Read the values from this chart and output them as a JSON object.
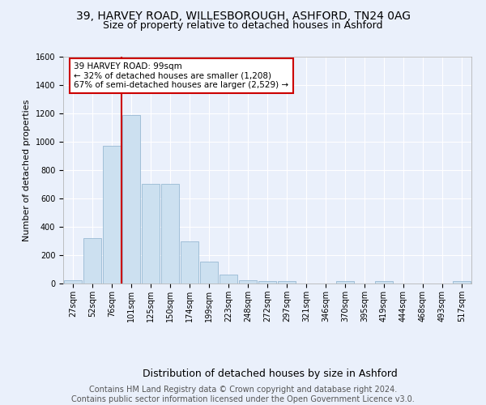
{
  "title1": "39, HARVEY ROAD, WILLESBOROUGH, ASHFORD, TN24 0AG",
  "title2": "Size of property relative to detached houses in Ashford",
  "xlabel": "Distribution of detached houses by size in Ashford",
  "ylabel": "Number of detached properties",
  "categories": [
    "27sqm",
    "52sqm",
    "76sqm",
    "101sqm",
    "125sqm",
    "150sqm",
    "174sqm",
    "199sqm",
    "223sqm",
    "248sqm",
    "272sqm",
    "297sqm",
    "321sqm",
    "346sqm",
    "370sqm",
    "395sqm",
    "419sqm",
    "444sqm",
    "468sqm",
    "493sqm",
    "517sqm"
  ],
  "values": [
    25,
    320,
    970,
    1190,
    700,
    700,
    300,
    155,
    65,
    25,
    15,
    15,
    0,
    0,
    15,
    0,
    15,
    0,
    0,
    0,
    15
  ],
  "bar_color": "#cce0f0",
  "bar_edge_color": "#8ab0cc",
  "vline_color": "#cc0000",
  "annotation_text": "39 HARVEY ROAD: 99sqm\n← 32% of detached houses are smaller (1,208)\n67% of semi-detached houses are larger (2,529) →",
  "annotation_box_color": "#ffffff",
  "annotation_box_edge": "#cc0000",
  "ylim": [
    0,
    1600
  ],
  "yticks": [
    0,
    200,
    400,
    600,
    800,
    1000,
    1200,
    1400,
    1600
  ],
  "bg_color": "#eaf0fb",
  "plot_bg_color": "#eaf0fb",
  "grid_color": "#ffffff",
  "footer": "Contains HM Land Registry data © Crown copyright and database right 2024.\nContains public sector information licensed under the Open Government Licence v3.0.",
  "title_fontsize": 10,
  "subtitle_fontsize": 9,
  "axis_label_fontsize": 9,
  "tick_fontsize": 7,
  "footer_fontsize": 7,
  "ylabel_fontsize": 8
}
